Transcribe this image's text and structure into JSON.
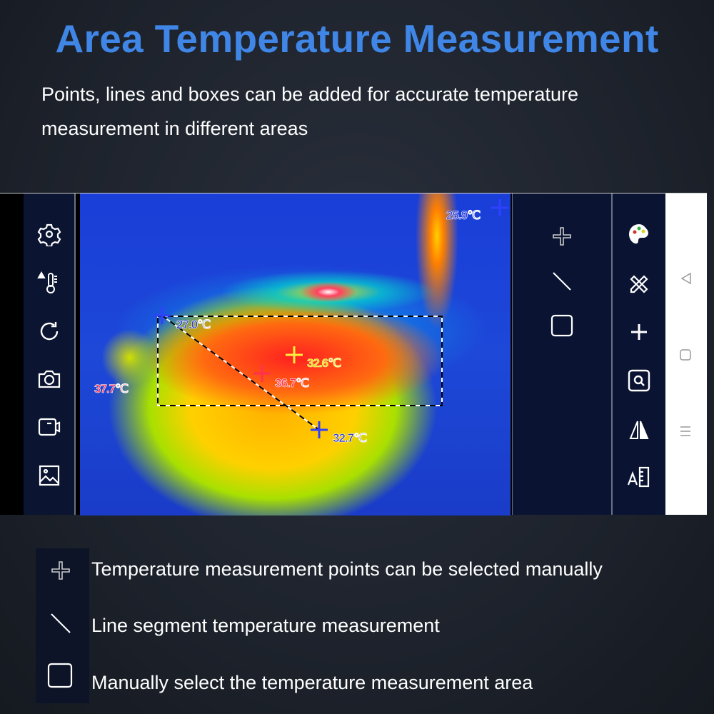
{
  "header": {
    "title": "Area Temperature Measurement",
    "subtitle": "Points, lines and boxes can be added for accurate temperature measurement in different areas"
  },
  "left_toolbar": {
    "icons": [
      "gear-icon",
      "thermometer-alarm-icon",
      "rotate-icon",
      "camera-icon",
      "video-icon",
      "gallery-icon"
    ]
  },
  "thermal_view": {
    "readings": {
      "max_corner": "25.9℃",
      "line_start": "27.0℃",
      "box_center": "32.6℃",
      "hotspot": "36.7℃",
      "line_end": "32.7℃",
      "left_point": "37.7℃"
    }
  },
  "measure_tools": {
    "icons": [
      "point-icon",
      "line-icon",
      "box-icon"
    ]
  },
  "right_toolbar": {
    "icons": [
      "palette-icon",
      "ruler-pencil-icon",
      "add-icon",
      "zoom-icon",
      "mirror-icon",
      "text-settings-icon"
    ]
  },
  "nav_bar": {
    "icons": [
      "back-icon",
      "home-icon",
      "menu-icon"
    ]
  },
  "legend": {
    "items": [
      {
        "icon": "point-icon",
        "text": "Temperature measurement points can be selected manually"
      },
      {
        "icon": "line-icon",
        "text": "Line segment temperature measurement"
      },
      {
        "icon": "box-icon",
        "text": "Manually select the temperature measurement area"
      }
    ]
  },
  "colors": {
    "title": "#3f86e6",
    "panel": "#0a1432",
    "point_blue": "#2a3cff",
    "point_yellow": "#ffee40",
    "point_red": "#ff3050"
  }
}
